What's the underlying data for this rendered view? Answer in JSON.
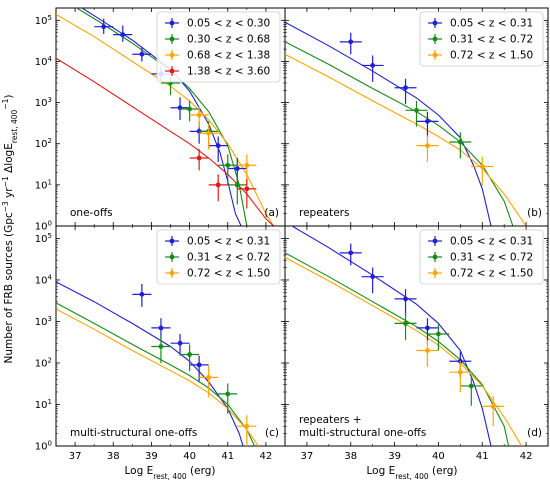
{
  "figure": {
    "ylabel_main": "Number of FRB sources (Gpc",
    "ylabel_sup1": "−3",
    "ylabel_mid": " yr",
    "ylabel_sup2": "−1",
    "ylabel_delta": " ΔlogE",
    "ylabel_sub": "rest, 400",
    "ylabel_sup3": "−1",
    "ylabel_close": ")",
    "xlabel_main": "Log E",
    "xlabel_sub": "rest, 400",
    "xlabel_unit": " (erg)"
  },
  "colors": {
    "blue": "#1f1fd6",
    "green": "#178a17",
    "orange": "#ffa500",
    "red": "#e01a1a"
  },
  "chart_data": [
    {
      "type": "scatter",
      "panel": "(a)",
      "caption_lines": [
        "one-offs"
      ],
      "xlim": [
        36.5,
        42.5
      ],
      "ylim_log10": [
        0,
        5.3
      ],
      "yscale": "log",
      "xticks": [
        "37",
        "38",
        "39",
        "40",
        "41",
        "42"
      ],
      "yticks": [
        "10^0",
        "10^1",
        "10^2",
        "10^3",
        "10^4",
        "10^5"
      ],
      "legend_position": "top-right",
      "series": [
        {
          "name": "0.05 < z < 0.30",
          "color": "blue",
          "points": [
            [
              37.75,
              70000,
              40000,
              1.5
            ],
            [
              38.25,
              45000,
              30000,
              1.5
            ],
            [
              38.75,
              15000,
              8000,
              1.5
            ],
            [
              39.25,
              5000,
              2500,
              1.5
            ],
            [
              39.75,
              750,
              600,
              2
            ],
            [
              40.25,
              200,
              150,
              2
            ],
            [
              40.75,
              90,
              60,
              2.5
            ],
            [
              41.25,
              25,
              20,
              3
            ]
          ],
          "fit": [
            [
              36.5,
              500000
            ],
            [
              37.5,
              130000
            ],
            [
              38.5,
              33000
            ],
            [
              39.5,
              6500
            ],
            [
              40.0,
              1900
            ],
            [
              40.5,
              300
            ],
            [
              40.8,
              60
            ],
            [
              41.0,
              12
            ],
            [
              41.2,
              2
            ],
            [
              41.35,
              1
            ]
          ]
        },
        {
          "name": "0.30 < z < 0.68",
          "color": "green",
          "points": [
            [
              39.5,
              3000,
              1500,
              2
            ],
            [
              40.0,
              700,
              400,
              2
            ],
            [
              40.5,
              200,
              150,
              2.5
            ],
            [
              41.0,
              30,
              25,
              3
            ],
            [
              41.25,
              10,
              8,
              3
            ]
          ],
          "fit": [
            [
              36.5,
              400000
            ],
            [
              37.5,
              110000
            ],
            [
              38.5,
              28000
            ],
            [
              39.5,
              6000
            ],
            [
              40.0,
              2200
            ],
            [
              40.5,
              600
            ],
            [
              41.0,
              90
            ],
            [
              41.3,
              10
            ],
            [
              41.5,
              1
            ]
          ]
        },
        {
          "name": "0.68 < z < 1.38",
          "color": "orange",
          "points": [
            [
              40.25,
              500,
              300,
              2
            ],
            [
              40.5,
              180,
              120,
              2.5
            ],
            [
              41.5,
              30,
              25,
              3
            ]
          ],
          "fit": [
            [
              36.5,
              140000
            ],
            [
              37.5,
              40000
            ],
            [
              38.5,
              10000
            ],
            [
              39.5,
              2500
            ],
            [
              40.0,
              1100
            ],
            [
              40.5,
              380
            ],
            [
              41.0,
              100
            ],
            [
              41.5,
              18
            ],
            [
              42.0,
              2
            ],
            [
              42.2,
              1
            ]
          ]
        },
        {
          "name": "1.38 < z < 3.60",
          "color": "red",
          "points": [
            [
              40.25,
              45,
              30,
              2
            ],
            [
              40.75,
              10,
              8,
              2.5
            ],
            [
              41.5,
              8,
              6,
              3
            ]
          ],
          "fit": [
            [
              36.5,
              12000
            ],
            [
              37.5,
              3200
            ],
            [
              38.5,
              800
            ],
            [
              39.5,
              200
            ],
            [
              40.0,
              100
            ],
            [
              40.5,
              45
            ],
            [
              41.0,
              18
            ],
            [
              41.5,
              6
            ],
            [
              42.0,
              1.5
            ],
            [
              42.2,
              1
            ]
          ]
        }
      ]
    },
    {
      "type": "scatter",
      "panel": "(b)",
      "caption_lines": [
        "repeaters"
      ],
      "xlim": [
        36.5,
        42.5
      ],
      "ylim_log10": [
        0,
        5.3
      ],
      "yscale": "log",
      "xticks": [
        "37",
        "38",
        "39",
        "40",
        "41",
        "42"
      ],
      "yticks": [],
      "legend_position": "top-right",
      "series": [
        {
          "name": "0.05 < z < 0.31",
          "color": "blue",
          "points": [
            [
              38.0,
              30000,
              20000,
              2
            ],
            [
              38.5,
              8000,
              6000,
              2.5
            ],
            [
              39.25,
              2300,
              1500,
              2.5
            ],
            [
              39.75,
              350,
              250,
              2.5
            ]
          ],
          "fit": [
            [
              36.5,
              90000
            ],
            [
              37.5,
              24000
            ],
            [
              38.5,
              5800
            ],
            [
              39.5,
              1300
            ],
            [
              40.0,
              500
            ],
            [
              40.5,
              140
            ],
            [
              40.8,
              30
            ],
            [
              41.0,
              8
            ],
            [
              41.2,
              1
            ]
          ]
        },
        {
          "name": "0.31 < z < 0.72",
          "color": "green",
          "points": [
            [
              39.5,
              650,
              450,
              2.5
            ],
            [
              40.5,
              110,
              80,
              2.5
            ]
          ],
          "fit": [
            [
              36.5,
              30000
            ],
            [
              37.5,
              8500
            ],
            [
              38.5,
              2200
            ],
            [
              39.5,
              600
            ],
            [
              40.0,
              280
            ],
            [
              40.5,
              110
            ],
            [
              41.0,
              30
            ],
            [
              41.5,
              4
            ],
            [
              41.7,
              1
            ]
          ]
        },
        {
          "name": "0.72 < z < 1.50",
          "color": "orange",
          "points": [
            [
              39.75,
              90,
              70,
              2.5
            ],
            [
              41.0,
              28,
              20,
              3
            ]
          ],
          "fit": [
            [
              36.5,
              15000
            ],
            [
              37.5,
              4200
            ],
            [
              38.5,
              1100
            ],
            [
              39.5,
              300
            ],
            [
              40.0,
              150
            ],
            [
              40.5,
              70
            ],
            [
              41.0,
              25
            ],
            [
              41.5,
              6
            ],
            [
              42.0,
              1
            ]
          ]
        }
      ]
    },
    {
      "type": "scatter",
      "panel": "(c)",
      "caption_lines": [
        "multi-structural one-offs"
      ],
      "xlim": [
        36.5,
        42.5
      ],
      "ylim_log10": [
        0,
        5.3
      ],
      "yscale": "log",
      "xticks": [
        "37",
        "38",
        "39",
        "40",
        "41",
        "42"
      ],
      "yticks": [
        "10^0",
        "10^1",
        "10^2",
        "10^3",
        "10^4",
        "10^5"
      ],
      "legend_position": "top-right",
      "series": [
        {
          "name": "0.05 < z < 0.31",
          "color": "blue",
          "points": [
            [
              38.75,
              4500,
              3500,
              2
            ],
            [
              39.25,
              700,
              500,
              2
            ],
            [
              39.75,
              300,
              200,
              2
            ],
            [
              40.25,
              90,
              60,
              2.5
            ]
          ],
          "fit": [
            [
              36.5,
              9000
            ],
            [
              37.5,
              3000
            ],
            [
              38.5,
              900
            ],
            [
              39.5,
              250
            ],
            [
              40.0,
              110
            ],
            [
              40.5,
              35
            ],
            [
              41.0,
              8
            ],
            [
              41.3,
              2
            ],
            [
              41.4,
              1
            ]
          ]
        },
        {
          "name": "0.31 < z < 0.72",
          "color": "green",
          "points": [
            [
              39.25,
              250,
              200,
              2.5
            ],
            [
              40.0,
              160,
              120,
              2.5
            ],
            [
              41.0,
              18,
              14,
              3
            ]
          ],
          "fit": [
            [
              36.5,
              2800
            ],
            [
              37.5,
              900
            ],
            [
              38.5,
              280
            ],
            [
              39.5,
              90
            ],
            [
              40.0,
              50
            ],
            [
              40.5,
              25
            ],
            [
              41.0,
              10
            ],
            [
              41.5,
              2.5
            ],
            [
              41.7,
              1
            ]
          ]
        },
        {
          "name": "0.72 < z < 1.50",
          "color": "orange",
          "points": [
            [
              40.5,
              45,
              40,
              3
            ],
            [
              41.5,
              3,
              2.5,
              3
            ]
          ],
          "fit": [
            [
              36.5,
              2000
            ],
            [
              37.5,
              650
            ],
            [
              38.5,
              200
            ],
            [
              39.5,
              65
            ],
            [
              40.0,
              37
            ],
            [
              40.5,
              19
            ],
            [
              41.0,
              8
            ],
            [
              41.5,
              2.5
            ],
            [
              41.8,
              1
            ]
          ]
        }
      ]
    },
    {
      "type": "scatter",
      "panel": "(d)",
      "caption_lines": [
        "repeaters +",
        "multi-structural one-offs"
      ],
      "xlim": [
        36.5,
        42.5
      ],
      "ylim_log10": [
        0,
        5.3
      ],
      "yscale": "log",
      "xticks": [
        "37",
        "38",
        "39",
        "40",
        "41",
        "42"
      ],
      "yticks": [],
      "legend_position": "top-right",
      "series": [
        {
          "name": "0.05 < z < 0.31",
          "color": "blue",
          "points": [
            [
              38.0,
              45000,
              30000,
              2
            ],
            [
              38.5,
              12000,
              8000,
              2.5
            ],
            [
              39.25,
              3500,
              2500,
              2.5
            ],
            [
              39.75,
              700,
              500,
              2.5
            ],
            [
              40.5,
              110,
              80,
              2.5
            ]
          ],
          "fit": [
            [
              36.5,
              250000
            ],
            [
              37.5,
              60000
            ],
            [
              38.5,
              13000
            ],
            [
              39.5,
              2600
            ],
            [
              40.0,
              900
            ],
            [
              40.5,
              200
            ],
            [
              40.8,
              35
            ],
            [
              41.0,
              8
            ],
            [
              41.2,
              1
            ]
          ]
        },
        {
          "name": "0.31 < z < 0.72",
          "color": "green",
          "points": [
            [
              39.25,
              900,
              700,
              2.5
            ],
            [
              40.0,
              500,
              350,
              2.5
            ],
            [
              40.75,
              28,
              20,
              3
            ]
          ],
          "fit": [
            [
              36.5,
              45000
            ],
            [
              37.5,
              12000
            ],
            [
              38.5,
              3000
            ],
            [
              39.5,
              750
            ],
            [
              40.0,
              330
            ],
            [
              40.5,
              120
            ],
            [
              41.0,
              30
            ],
            [
              41.5,
              3
            ],
            [
              41.6,
              1
            ]
          ]
        },
        {
          "name": "0.72 < z < 1.50",
          "color": "orange",
          "points": [
            [
              39.75,
              200,
              150,
              2.5
            ],
            [
              40.5,
              60,
              50,
              3
            ],
            [
              41.25,
              9,
              7,
              3
            ]
          ],
          "fit": [
            [
              36.5,
              35000
            ],
            [
              37.5,
              9500
            ],
            [
              38.5,
              2400
            ],
            [
              39.5,
              600
            ],
            [
              40.0,
              270
            ],
            [
              40.5,
              100
            ],
            [
              41.0,
              28
            ],
            [
              41.5,
              5
            ],
            [
              41.9,
              1
            ]
          ]
        }
      ]
    }
  ]
}
